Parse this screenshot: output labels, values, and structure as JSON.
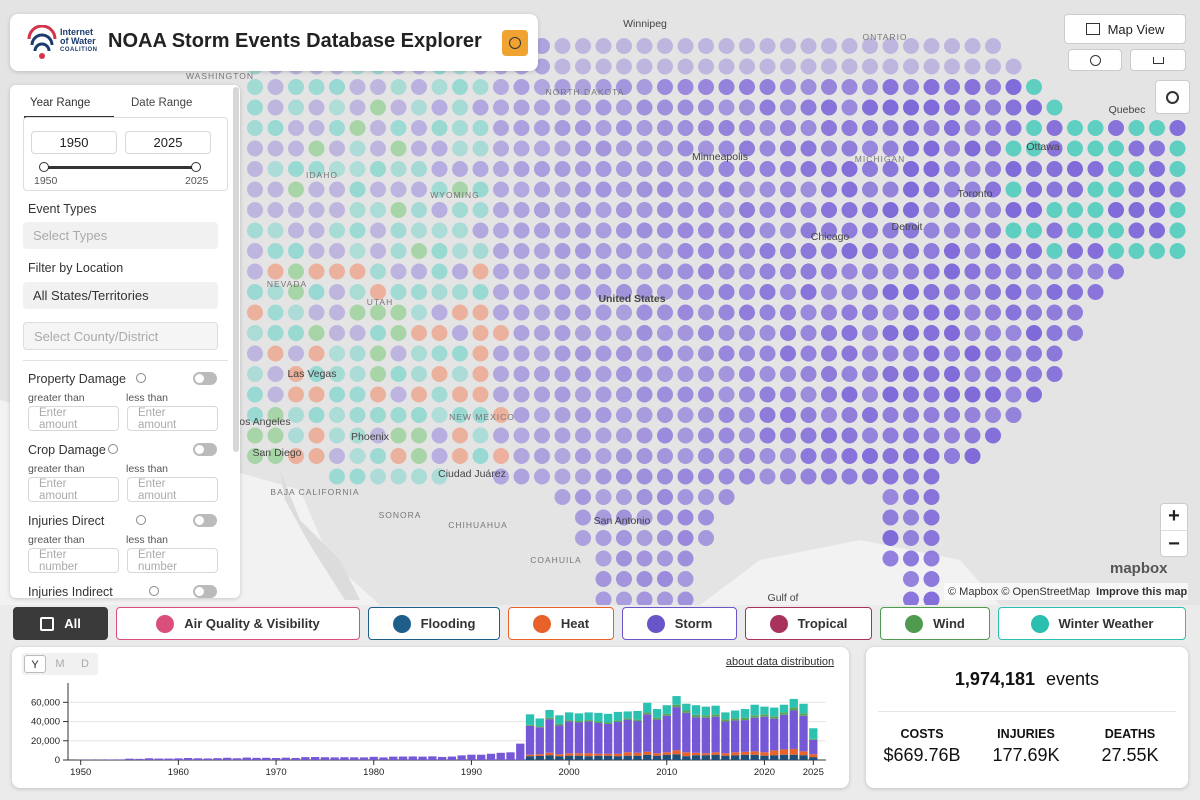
{
  "header": {
    "title": "NOAA Storm Events Database Explorer",
    "logo": [
      "Internet",
      "of Water",
      "COALITION"
    ]
  },
  "controls": {
    "map_view": "Map View"
  },
  "filters": {
    "tabs": [
      "Year Range",
      "Date Range"
    ],
    "year_start": "1950",
    "year_end": "2025",
    "slider_min": "1950",
    "slider_max": "2025",
    "event_types_label": "Event Types",
    "event_types_placeholder": "Select Types",
    "location_label": "Filter by Location",
    "state_select": "All States/Territories",
    "county_placeholder": "Select County/District",
    "ranges": [
      {
        "label": "Property Damage",
        "greater": "greater than",
        "less": "less than",
        "placeholder": "Enter amount"
      },
      {
        "label": "Crop Damage",
        "greater": "greater than",
        "less": "less than",
        "placeholder": "Enter amount"
      },
      {
        "label": "Injuries Direct",
        "greater": "greater than",
        "less": "less than",
        "placeholder": "Enter number"
      },
      {
        "label": "Injuries Indirect"
      }
    ]
  },
  "map": {
    "labels": [
      "Winnipeg",
      "ONTARIO",
      "Quebec",
      "Ottawa",
      "Toronto",
      "WASHINGTON",
      "NORTH DAKOTA",
      "Minneapolis",
      "MICHIGAN",
      "IDAHO",
      "WYOMING",
      "NEVADA",
      "UTAH",
      "United States",
      "Chicago",
      "Detroit",
      "Las Vegas",
      "Los Angeles",
      "San Diego",
      "Phoenix",
      "NEW MEXICO",
      "Ciudad Juárez",
      "BAJA CALIFORNIA",
      "SONORA",
      "CHIHUAHUA",
      "San Antonio",
      "COAHUILA",
      "Gulf of"
    ],
    "attribution": "© Mapbox © OpenStreetMap",
    "improve": "Improve this map",
    "brand": "mapbox"
  },
  "categories": [
    "All",
    "Air Quality & Visibility",
    "Flooding",
    "Heat",
    "Storm",
    "Tropical",
    "Wind",
    "Winter Weather"
  ],
  "chart_controls": {
    "periods": [
      "Y",
      "M",
      "D"
    ],
    "link": "about data distribution"
  },
  "stats": {
    "total": "1,974,181",
    "unit": "events",
    "items": [
      {
        "label": "COSTS",
        "value": "$669.76B"
      },
      {
        "label": "INJURIES",
        "value": "177.69K"
      },
      {
        "label": "DEATHS",
        "value": "27.55K"
      }
    ]
  },
  "chart_data": {
    "type": "bar",
    "stacked": true,
    "grid": true,
    "x": [
      1950,
      1951,
      1952,
      1953,
      1954,
      1955,
      1956,
      1957,
      1958,
      1959,
      1960,
      1961,
      1962,
      1963,
      1964,
      1965,
      1966,
      1967,
      1968,
      1969,
      1970,
      1971,
      1972,
      1973,
      1974,
      1975,
      1976,
      1977,
      1978,
      1979,
      1980,
      1981,
      1982,
      1983,
      1984,
      1985,
      1986,
      1987,
      1988,
      1989,
      1990,
      1991,
      1992,
      1993,
      1994,
      1995,
      1996,
      1997,
      1998,
      1999,
      2000,
      2001,
      2002,
      2003,
      2004,
      2005,
      2006,
      2007,
      2008,
      2009,
      2010,
      2011,
      2012,
      2013,
      2014,
      2015,
      2016,
      2017,
      2018,
      2019,
      2020,
      2021,
      2022,
      2023,
      2024,
      2025
    ],
    "xlim": [
      1948.7,
      2026.3
    ],
    "xticks": [
      1950,
      1960,
      1970,
      1980,
      1990,
      2000,
      2010,
      2020,
      2025
    ],
    "ylim": [
      0,
      78000
    ],
    "yticks": [
      0,
      {
        "value": 20000,
        "label": "20,000"
      },
      {
        "value": 40000,
        "label": "40,000"
      },
      {
        "value": 60000,
        "label": "60,000"
      }
    ],
    "series": [
      {
        "name": "Flooding",
        "color": "#1f4e79",
        "values": [
          0,
          0,
          0,
          0,
          0,
          0,
          0,
          0,
          0,
          0,
          0,
          0,
          0,
          0,
          0,
          0,
          0,
          0,
          0,
          0,
          0,
          0,
          0,
          0,
          0,
          0,
          0,
          0,
          0,
          0,
          0,
          0,
          0,
          0,
          0,
          0,
          0,
          0,
          0,
          0,
          0,
          0,
          0,
          0,
          0,
          0,
          4000,
          4200,
          5000,
          4000,
          4500,
          4500,
          4000,
          4500,
          4500,
          4000,
          4500,
          4500,
          5500,
          4500,
          5500,
          6000,
          4000,
          5000,
          5000,
          5500,
          4500,
          5000,
          5500,
          5500,
          4500,
          5000,
          5500,
          5500,
          5000,
          3000
        ]
      },
      {
        "name": "Heat",
        "color": "#e8622a",
        "values": [
          0,
          0,
          0,
          0,
          0,
          0,
          0,
          0,
          0,
          0,
          0,
          0,
          0,
          0,
          0,
          0,
          0,
          0,
          0,
          0,
          0,
          0,
          0,
          0,
          0,
          0,
          0,
          0,
          0,
          0,
          0,
          0,
          0,
          0,
          0,
          0,
          0,
          0,
          0,
          0,
          0,
          0,
          0,
          0,
          0,
          0,
          1500,
          1800,
          2500,
          2000,
          2500,
          2500,
          3000,
          2000,
          2000,
          2500,
          3500,
          3000,
          3000,
          2500,
          2500,
          4000,
          4000,
          2500,
          2000,
          2500,
          2500,
          3000,
          3000,
          3500,
          3500,
          5000,
          5500,
          6000,
          4000,
          3000
        ]
      },
      {
        "name": "Storm",
        "color": "#7558d6",
        "values": [
          220,
          270,
          300,
          600,
          650,
          1400,
          1200,
          1800,
          1500,
          1500,
          1700,
          2100,
          1800,
          1600,
          1900,
          2300,
          1800,
          2500,
          2200,
          2300,
          2100,
          2400,
          2100,
          3000,
          3100,
          2900,
          2700,
          2900,
          2800,
          2700,
          3300,
          2700,
          3500,
          3600,
          3700,
          3500,
          3800,
          3200,
          3600,
          4800,
          5500,
          5500,
          6500,
          7500,
          8000,
          17000,
          30000,
          28000,
          35000,
          30000,
          33000,
          32000,
          33000,
          32000,
          31000,
          33000,
          34000,
          33000,
          39000,
          35000,
          38000,
          45000,
          41000,
          37000,
          37000,
          37000,
          33000,
          33000,
          33000,
          35000,
          37000,
          33000,
          36000,
          40000,
          37000,
          15000
        ]
      },
      {
        "name": "Wind",
        "color": "#5aa35a",
        "values": [
          0,
          0,
          0,
          0,
          0,
          0,
          0,
          0,
          0,
          0,
          0,
          0,
          0,
          0,
          0,
          0,
          0,
          0,
          0,
          0,
          0,
          0,
          0,
          0,
          0,
          0,
          0,
          0,
          0,
          0,
          0,
          0,
          0,
          0,
          0,
          0,
          0,
          0,
          0,
          0,
          0,
          0,
          0,
          0,
          0,
          0,
          1000,
          1200,
          1500,
          1500,
          1500,
          1500,
          1500,
          1500,
          1500,
          1500,
          1500,
          1500,
          2000,
          2000,
          2000,
          2500,
          2500,
          2500,
          2500,
          2500,
          2500,
          2500,
          2500,
          2500,
          2500,
          2500,
          2500,
          3000,
          2500,
          1000
        ]
      },
      {
        "name": "Winter Weather",
        "color": "#2cc2b2",
        "values": [
          0,
          0,
          0,
          0,
          0,
          0,
          0,
          0,
          0,
          0,
          0,
          0,
          0,
          0,
          0,
          0,
          0,
          0,
          0,
          0,
          0,
          0,
          0,
          0,
          0,
          0,
          0,
          0,
          0,
          0,
          0,
          0,
          0,
          0,
          0,
          0,
          0,
          0,
          0,
          0,
          0,
          0,
          0,
          0,
          0,
          0,
          11000,
          8000,
          8000,
          9000,
          8000,
          8000,
          8000,
          9000,
          9000,
          9000,
          7000,
          9000,
          10000,
          9000,
          9000,
          9000,
          7000,
          10000,
          9000,
          9000,
          7000,
          8000,
          9000,
          11000,
          8000,
          9000,
          8000,
          9000,
          10000,
          11000
        ]
      }
    ]
  }
}
